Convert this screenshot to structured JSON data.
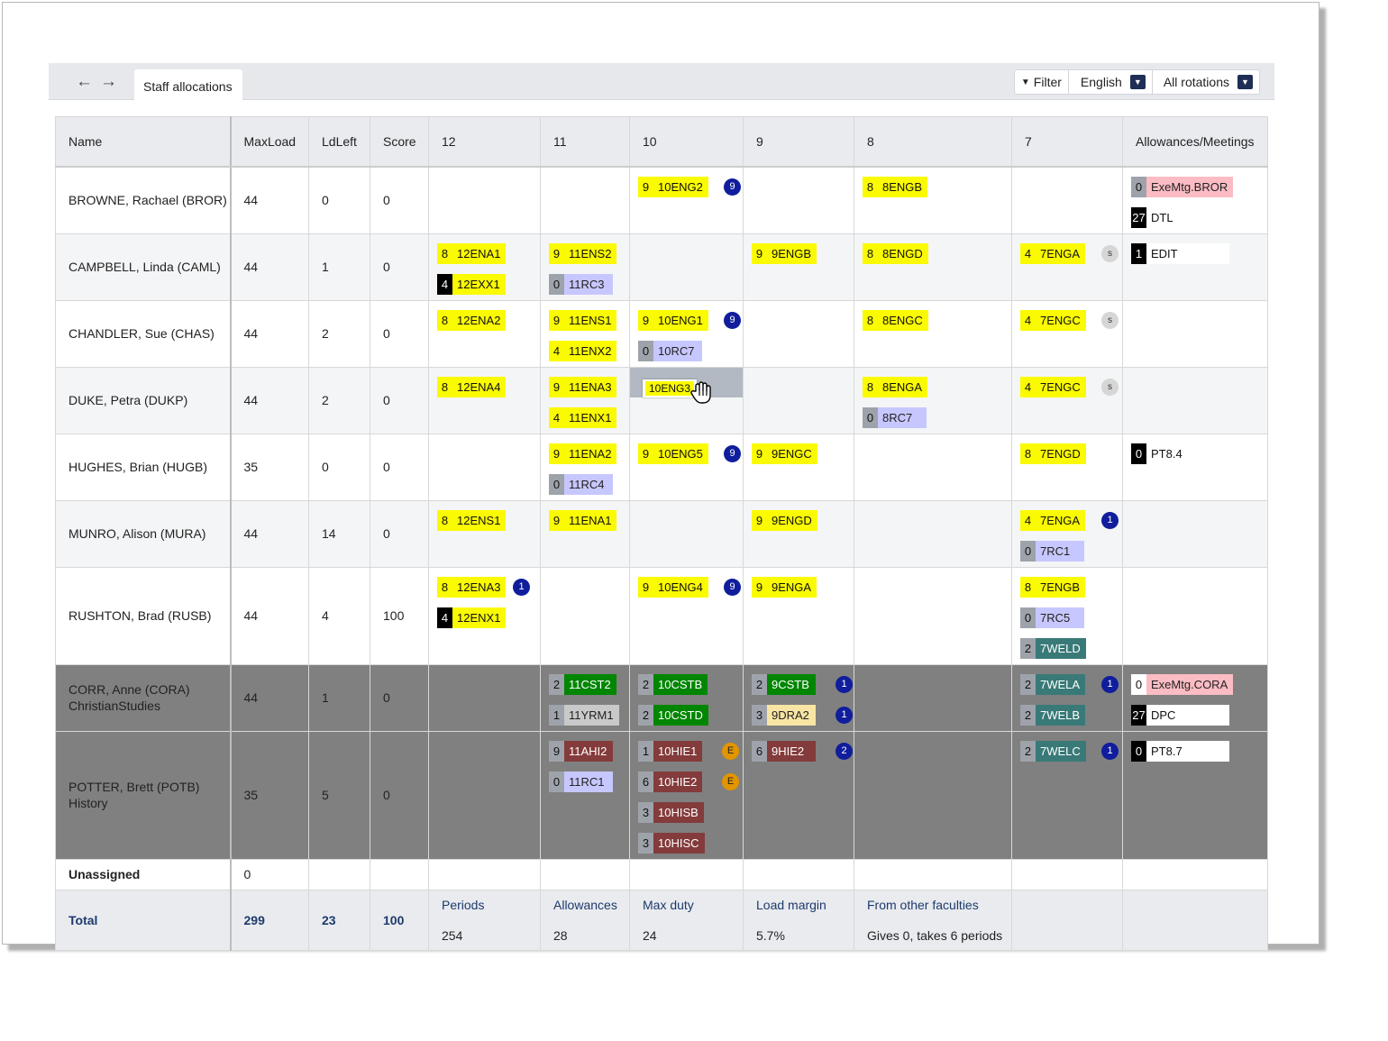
{
  "nav": {
    "tab": "Staff allocations"
  },
  "toolbar": {
    "filter": "Filter",
    "subject": "English",
    "rotation": "All rotations"
  },
  "columns": [
    "Name",
    "MaxLoad",
    "LdLeft",
    "Score",
    "12",
    "11",
    "10",
    "9",
    "8",
    "7",
    "Allowances/Meetings"
  ],
  "rows": [
    {
      "name": "BROWNE, Rachael  (BROR)",
      "maxload": "44",
      "ldleft": "0",
      "score": "0"
    },
    {
      "name": "CAMPBELL, Linda  (CAML)",
      "maxload": "44",
      "ldleft": "1",
      "score": "0"
    },
    {
      "name": "CHANDLER, Sue  (CHAS)",
      "maxload": "44",
      "ldleft": "2",
      "score": "0"
    },
    {
      "name": "DUKE, Petra  (DUKP)",
      "maxload": "44",
      "ldleft": "2",
      "score": "0"
    },
    {
      "name": "HUGHES, Brian  (HUGB)",
      "maxload": "35",
      "ldleft": "0",
      "score": "0"
    },
    {
      "name": "MUNRO, Alison  (MURA)",
      "maxload": "44",
      "ldleft": "14",
      "score": "0"
    },
    {
      "name": "RUSHTON, Brad  (RUSB)",
      "maxload": "44",
      "ldleft": "4",
      "score": "100"
    },
    {
      "name": "CORR, Anne  (CORA)",
      "faculty": "ChristianStudies",
      "maxload": "44",
      "ldleft": "1",
      "score": "0"
    },
    {
      "name": "POTTER, Brett  (POTB)",
      "faculty": "History",
      "maxload": "35",
      "ldleft": "5",
      "score": "0"
    }
  ],
  "chips": {
    "r0": [
      [
        "9",
        "10ENG2",
        "9"
      ],
      [
        "8",
        "8ENGB"
      ],
      [
        "0",
        "ExeMtg.BROR"
      ],
      [
        "27",
        "DTL"
      ]
    ],
    "r1": [
      [
        "8",
        "12ENA1"
      ],
      [
        "4",
        "12EXX1"
      ],
      [
        "9",
        "11ENS2"
      ],
      [
        "0",
        "11RC3"
      ],
      [
        "9",
        "9ENGB"
      ],
      [
        "8",
        "8ENGD"
      ],
      [
        "4",
        "7ENGA",
        "s"
      ],
      [
        "1",
        "EDIT"
      ]
    ],
    "r2": [
      [
        "8",
        "12ENA2"
      ],
      [
        "9",
        "11ENS1"
      ],
      [
        "4",
        "11ENX2"
      ],
      [
        "9",
        "10ENG1",
        "9"
      ],
      [
        "0",
        "10RC7"
      ],
      [
        "8",
        "8ENGC"
      ],
      [
        "4",
        "7ENGC",
        "s"
      ]
    ],
    "r3": [
      [
        "8",
        "12ENA4"
      ],
      [
        "9",
        "11ENA3"
      ],
      [
        "4",
        "11ENX1"
      ],
      [
        "8",
        "8ENGA"
      ],
      [
        "0",
        "8RC7"
      ],
      [
        "4",
        "7ENGC",
        "s"
      ]
    ],
    "r4": [
      [
        "9",
        "11ENA2"
      ],
      [
        "0",
        "11RC4"
      ],
      [
        "9",
        "10ENG5",
        "9"
      ],
      [
        "9",
        "9ENGC"
      ],
      [
        "8",
        "7ENGD"
      ],
      [
        "0",
        "PT8.4"
      ]
    ],
    "r5": [
      [
        "8",
        "12ENS1"
      ],
      [
        "9",
        "11ENA1"
      ],
      [
        "9",
        "9ENGD"
      ],
      [
        "4",
        "7ENGA",
        "1"
      ],
      [
        "0",
        "7RC1"
      ]
    ],
    "r6": [
      [
        "8",
        "12ENA3",
        "1"
      ],
      [
        "4",
        "12ENX1"
      ],
      [
        "9",
        "10ENG4",
        "9"
      ],
      [
        "9",
        "9ENGA"
      ],
      [
        "8",
        "7ENGB"
      ],
      [
        "0",
        "7RC5"
      ],
      [
        "2",
        "7WELD"
      ]
    ],
    "r7": [
      [
        "2",
        "11CST2"
      ],
      [
        "1",
        "11YRM1"
      ],
      [
        "2",
        "10CSTB"
      ],
      [
        "2",
        "10CSTD"
      ],
      [
        "2",
        "9CSTB",
        "1"
      ],
      [
        "3",
        "9DRA2",
        "1"
      ],
      [
        "2",
        "7WELA",
        "1"
      ],
      [
        "2",
        "7WELB"
      ],
      [
        "0",
        "ExeMtg.CORA"
      ],
      [
        "27",
        "DPC"
      ]
    ],
    "r8": [
      [
        "9",
        "11AHI2"
      ],
      [
        "0",
        "11RC1"
      ],
      [
        "1",
        "10HIE1",
        "E"
      ],
      [
        "6",
        "10HIE2",
        "E"
      ],
      [
        "3",
        "10HISB"
      ],
      [
        "3",
        "10HISC"
      ],
      [
        "6",
        "9HIE2",
        "2"
      ],
      [
        "2",
        "7WELC",
        "1"
      ],
      [
        "0",
        "PT8.7"
      ]
    ]
  },
  "drag": {
    "label": "10ENG3"
  },
  "unassigned": {
    "label": "Unassigned",
    "value": "0"
  },
  "total": {
    "label": "Total",
    "maxload": "299",
    "ldleft": "23",
    "score": "100",
    "stats": [
      {
        "label": "Periods",
        "value": "254"
      },
      {
        "label": "Allowances",
        "value": "28"
      },
      {
        "label": "Max duty",
        "value": "24"
      },
      {
        "label": "Load margin",
        "value": "5.7%"
      },
      {
        "label": "From other faculties",
        "value": "Gives 0, takes 6 periods"
      }
    ]
  }
}
